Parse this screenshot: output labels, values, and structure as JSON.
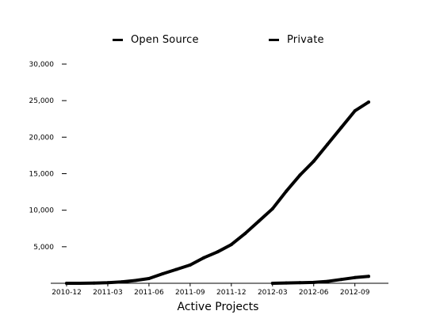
{
  "chart_data": {
    "type": "line",
    "x": [
      "2010-12",
      "2011-01",
      "2011-02",
      "2011-03",
      "2011-04",
      "2011-05",
      "2011-06",
      "2011-07",
      "2011-08",
      "2011-09",
      "2011-10",
      "2011-11",
      "2011-12",
      "2012-01",
      "2012-02",
      "2012-03",
      "2012-04",
      "2012-05",
      "2012-06",
      "2012-07",
      "2012-08",
      "2012-09",
      "2012-10"
    ],
    "series": [
      {
        "name": "Open Source",
        "color": "#000000",
        "values": [
          0,
          0,
          20,
          80,
          200,
          380,
          650,
          1300,
          1900,
          2500,
          3500,
          4300,
          5300,
          6800,
          8500,
          10200,
          12600,
          14800,
          16700,
          19000,
          21300,
          23600,
          24800
        ]
      },
      {
        "name": "Private",
        "color": "#000000",
        "values": [
          null,
          null,
          null,
          null,
          null,
          null,
          null,
          null,
          null,
          null,
          null,
          null,
          null,
          null,
          null,
          0,
          40,
          80,
          120,
          260,
          520,
          780,
          950
        ]
      }
    ],
    "xticks": [
      "2010-12",
      "2011-03",
      "2011-06",
      "2011-09",
      "2011-12",
      "2012-03",
      "2012-06",
      "2012-09"
    ],
    "yticks": [
      "5,000",
      "10,000",
      "15,000",
      "20,000",
      "25,000",
      "30,000"
    ],
    "ytick_values": [
      5000,
      10000,
      15000,
      20000,
      25000,
      30000
    ],
    "xlabel": "Active Projects",
    "ylabel": "",
    "title": "",
    "ylim": [
      0,
      30000
    ],
    "legend_position": "top",
    "grid": false
  }
}
